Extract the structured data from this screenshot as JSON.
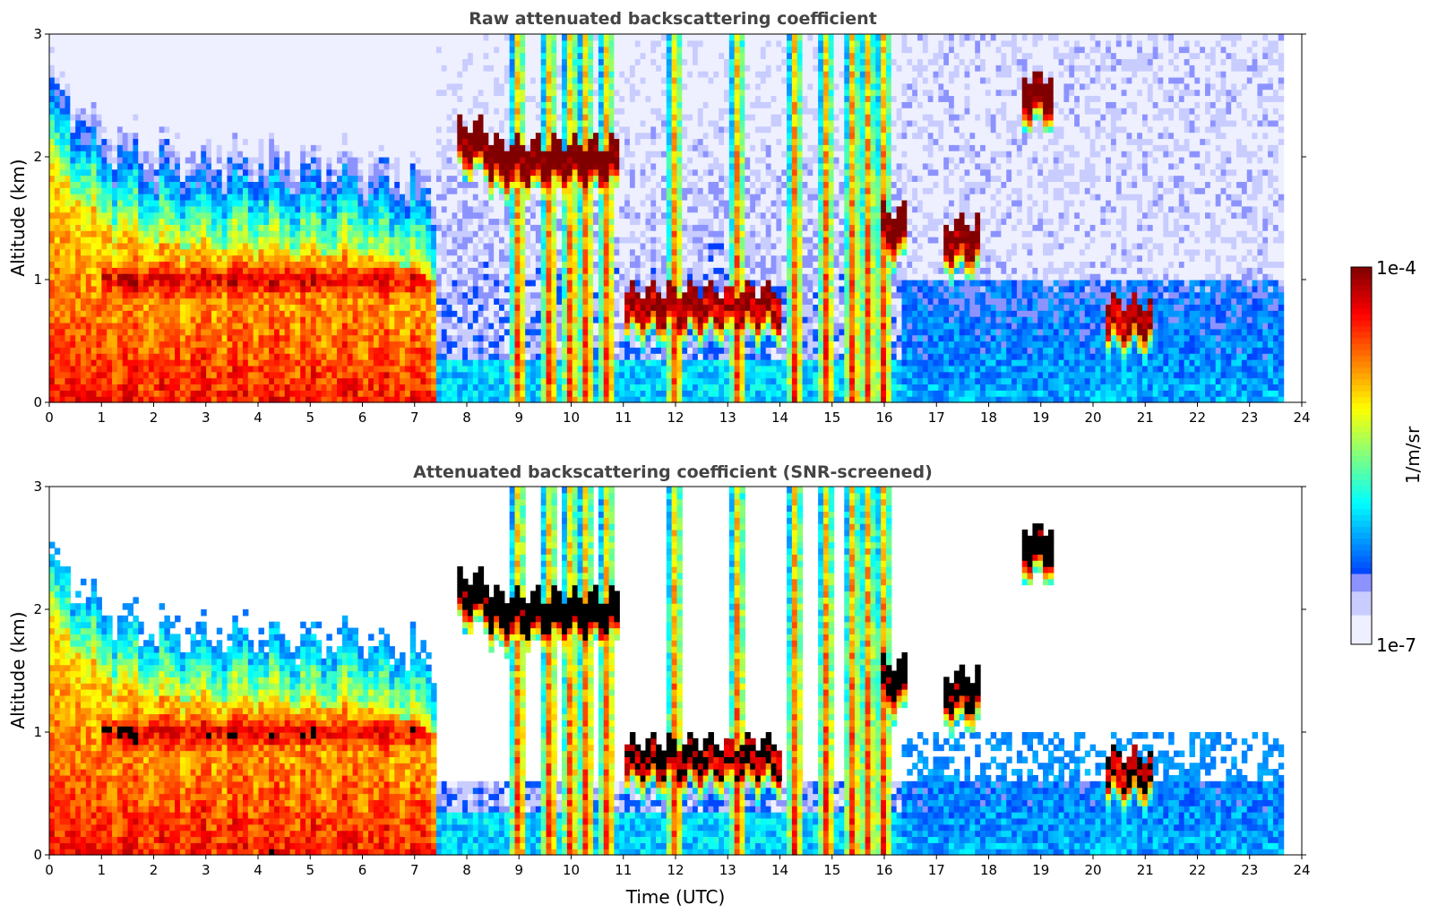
{
  "chart_data": [
    {
      "type": "heatmap",
      "title": "Raw attenuated backscattering coefficient",
      "ylabel": "Altitude (km)",
      "xlabel": "",
      "xlim": [
        0,
        24
      ],
      "ylim": [
        0,
        3
      ],
      "x_ticks": [
        0,
        1,
        2,
        3,
        4,
        5,
        6,
        7,
        8,
        9,
        10,
        11,
        12,
        13,
        14,
        15,
        16,
        17,
        18,
        19,
        20,
        21,
        22,
        23,
        24
      ],
      "y_ticks": [
        0,
        1,
        2,
        3
      ],
      "data_end_time": 23.65,
      "screened": false,
      "features": [
        {
          "kind": "aerosol_layer_top_km",
          "x": [
            0,
            1,
            2,
            3,
            4,
            5,
            6,
            7,
            7.3
          ],
          "y": [
            1.9,
            1.45,
            1.3,
            1.25,
            1.25,
            1.2,
            1.2,
            1.1,
            1.0
          ]
        },
        {
          "kind": "cloud",
          "x_start": 7.8,
          "x_end": 8.4,
          "alt_km": 2.15,
          "log_value": -4.0
        },
        {
          "kind": "cloud",
          "x_start": 8.4,
          "x_end": 10.9,
          "alt_km": 2.0,
          "log_value": -4.0
        },
        {
          "kind": "cloud",
          "x_start": 11.0,
          "x_end": 14.0,
          "alt_km": 0.8,
          "log_value": -4.3
        },
        {
          "kind": "cloud",
          "x_start": 15.9,
          "x_end": 16.4,
          "alt_km": 1.45,
          "log_value": -4.0
        },
        {
          "kind": "cloud",
          "x_start": 17.1,
          "x_end": 17.8,
          "alt_km": 1.35,
          "log_value": -4.1
        },
        {
          "kind": "cloud",
          "x_start": 18.6,
          "x_end": 19.2,
          "alt_km": 2.55,
          "log_value": -4.0
        },
        {
          "kind": "cloud",
          "x_start": 20.2,
          "x_end": 21.1,
          "alt_km": 0.7,
          "log_value": -4.3
        }
      ]
    },
    {
      "type": "heatmap",
      "title": "Attenuated backscattering coefficient (SNR-screened)",
      "ylabel": "Altitude (km)",
      "xlabel": "Time (UTC)",
      "xlim": [
        0,
        24
      ],
      "ylim": [
        0,
        3
      ],
      "x_ticks": [
        0,
        1,
        2,
        3,
        4,
        5,
        6,
        7,
        8,
        9,
        10,
        11,
        12,
        13,
        14,
        15,
        16,
        17,
        18,
        19,
        20,
        21,
        22,
        23,
        24
      ],
      "y_ticks": [
        0,
        1,
        2,
        3
      ],
      "data_end_time": 23.65,
      "screened": true
    }
  ],
  "colorbar": {
    "colormap": "jet",
    "scale": "log",
    "min_label": "1e-7",
    "max_label": "1e-4",
    "unit_label": "1/m/sr",
    "min": 1e-07,
    "max": 0.0001
  }
}
